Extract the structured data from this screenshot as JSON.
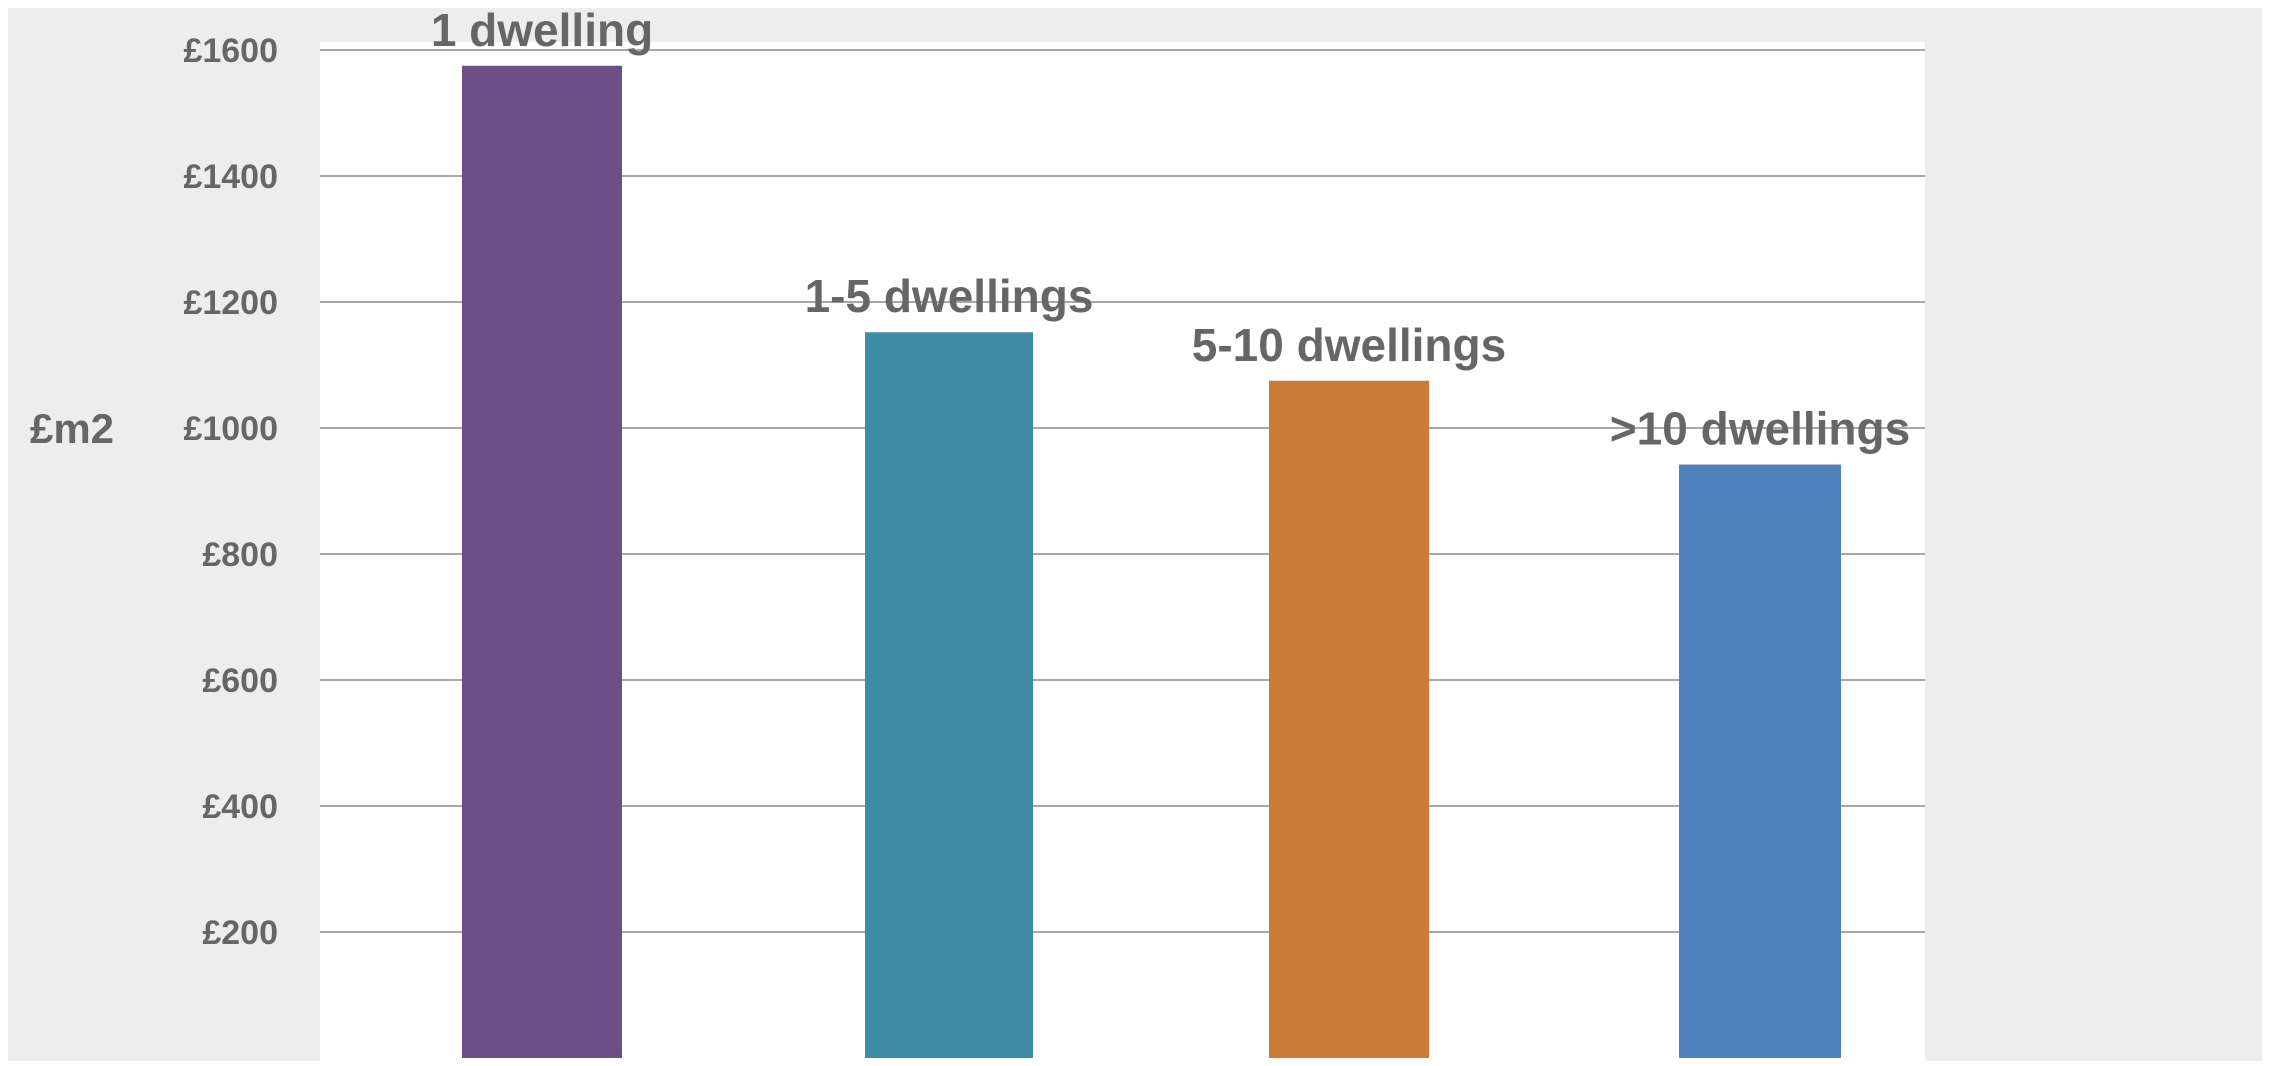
{
  "colors": {
    "outer_background": "#ededed",
    "plot_background": "#ffffff",
    "gridline": "#8c8c8c",
    "text": "#666666"
  },
  "chart_data": {
    "type": "bar",
    "title": "",
    "xlabel": "",
    "ylabel": "£m2",
    "categories": [
      "1 dwelling",
      "1-5 dwellings",
      "5-10 dwellings",
      ">10 dwellings"
    ],
    "values": [
      1575,
      1152,
      1075,
      942
    ],
    "bar_colors": [
      "#6a5084",
      "#3d8ca4",
      "#cc7a38",
      "#4f81bd"
    ],
    "ylim": [
      0,
      1600
    ],
    "yticks": [
      200,
      400,
      600,
      800,
      1000,
      1200,
      1400,
      1600
    ],
    "ytick_labels": [
      "£200",
      "£400",
      "£600",
      "£800",
      "£1000",
      "£1200",
      "£1400",
      "£1600"
    ],
    "grid": true,
    "legend": "none",
    "category_labels_position": "above bars"
  }
}
